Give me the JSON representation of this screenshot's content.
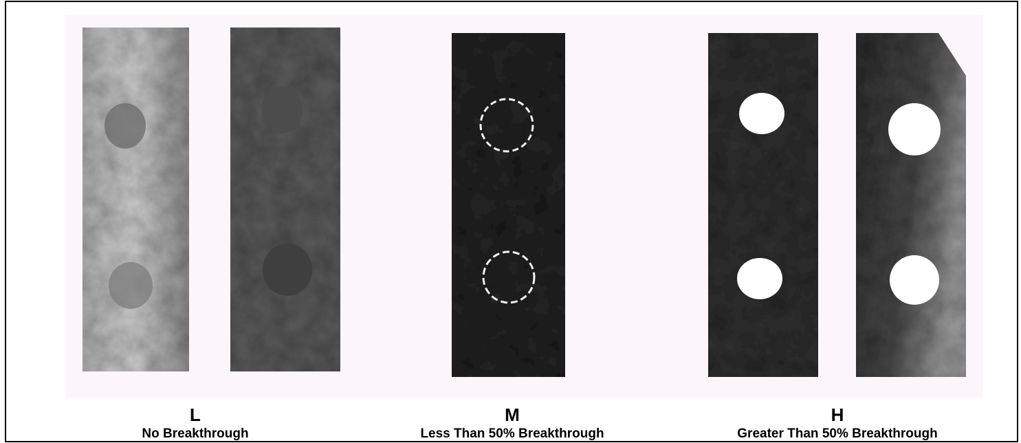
{
  "groups": [
    {
      "letter": "L",
      "caption": "No Breakthrough"
    },
    {
      "letter": "M",
      "caption": "Less Than 50% Breakthrough"
    },
    {
      "letter": "H",
      "caption": "Greater Than 50% Breakthrough"
    }
  ]
}
